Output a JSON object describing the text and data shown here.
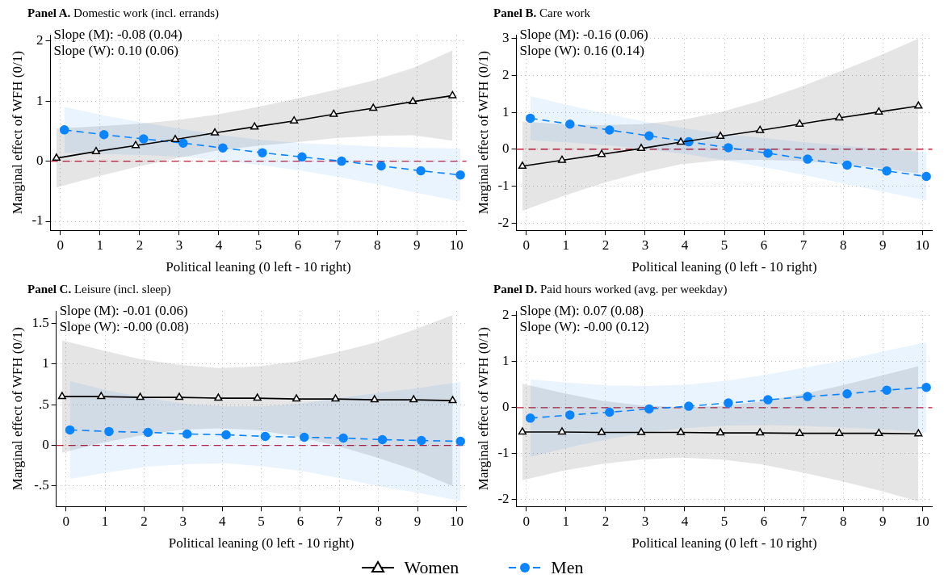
{
  "chart_data": [
    {
      "type": "line",
      "title": "Panel A. Domestic work (incl. errands)",
      "xlabel": "Political leaning (0 left - 10 right)",
      "ylabel": "Marginal effect of WFH (0/1)",
      "annotations": [
        "Slope (M): -0.08 (0.04)",
        "Slope (W): 0.10 (0.06)"
      ],
      "xlim": [
        -0.25,
        10.25
      ],
      "xticks": [
        0,
        1,
        2,
        3,
        4,
        5,
        6,
        7,
        8,
        9,
        10
      ],
      "ylim": [
        -1.15,
        2.1
      ],
      "yticks": [
        -1,
        0,
        1,
        2
      ],
      "grid": true,
      "legend": "bottom",
      "ref_lines": [
        {
          "axis": "y",
          "value": 0,
          "color": "#c41e3a",
          "line_style": "dashed"
        }
      ],
      "series": [
        {
          "name": "Women",
          "color": "#000000",
          "marker": "triangle",
          "line_style": "solid",
          "x": [
            -0.1,
            0.9,
            1.9,
            2.9,
            3.9,
            4.9,
            5.9,
            6.9,
            7.9,
            8.9,
            9.9
          ],
          "values": [
            0.05,
            0.16,
            0.26,
            0.36,
            0.47,
            0.57,
            0.67,
            0.78,
            0.88,
            0.99,
            1.09
          ],
          "upper": [
            0.54,
            0.58,
            0.62,
            0.68,
            0.77,
            0.89,
            1.03,
            1.18,
            1.34,
            1.55,
            1.84
          ],
          "lower": [
            -0.44,
            -0.26,
            -0.1,
            0.04,
            0.17,
            0.25,
            0.31,
            0.38,
            0.42,
            0.43,
            0.34
          ]
        },
        {
          "name": "Men",
          "color": "#0a84ff",
          "marker": "circle",
          "line_style": "dashed",
          "x": [
            0.1,
            1.1,
            2.1,
            3.1,
            4.1,
            5.1,
            6.1,
            7.1,
            8.1,
            9.1,
            10.1
          ],
          "values": [
            0.52,
            0.44,
            0.37,
            0.3,
            0.22,
            0.14,
            0.07,
            0.0,
            -0.08,
            -0.16,
            -0.23
          ],
          "upper": [
            0.9,
            0.76,
            0.64,
            0.53,
            0.43,
            0.35,
            0.3,
            0.27,
            0.24,
            0.22,
            0.21
          ],
          "lower": [
            0.14,
            0.12,
            0.1,
            0.07,
            0.01,
            -0.07,
            -0.16,
            -0.27,
            -0.4,
            -0.54,
            -0.67
          ]
        }
      ]
    },
    {
      "type": "line",
      "title": "Panel B. Care work",
      "xlabel": "Political leaning (0 left - 10 right)",
      "ylabel": "Marginal effect of WFH (0/1)",
      "annotations": [
        "Slope (M): -0.16 (0.06)",
        "Slope (W): 0.16 (0.14)"
      ],
      "xlim": [
        -0.25,
        10.25
      ],
      "xticks": [
        0,
        1,
        2,
        3,
        4,
        5,
        6,
        7,
        8,
        9,
        10
      ],
      "ylim": [
        -2.2,
        3.1
      ],
      "yticks": [
        -2,
        -1,
        0,
        1,
        2,
        3
      ],
      "grid": true,
      "ref_lines": [
        {
          "axis": "y",
          "value": 0,
          "color": "#c41e3a",
          "line_style": "dashed"
        }
      ],
      "series": [
        {
          "name": "Women",
          "color": "#000000",
          "marker": "triangle",
          "line_style": "solid",
          "x": [
            -0.1,
            0.9,
            1.9,
            2.9,
            3.9,
            4.9,
            5.9,
            6.9,
            7.9,
            8.9,
            9.9
          ],
          "values": [
            -0.46,
            -0.3,
            -0.14,
            0.02,
            0.19,
            0.35,
            0.51,
            0.68,
            0.85,
            1.01,
            1.17
          ],
          "upper": [
            0.75,
            0.68,
            0.65,
            0.68,
            0.79,
            1.0,
            1.31,
            1.68,
            2.1,
            2.53,
            3.0
          ],
          "lower": [
            -1.67,
            -1.28,
            -0.93,
            -0.64,
            -0.41,
            -0.3,
            -0.29,
            -0.32,
            -0.4,
            -0.51,
            -0.66
          ]
        },
        {
          "name": "Men",
          "color": "#0a84ff",
          "marker": "circle",
          "line_style": "dashed",
          "x": [
            0.1,
            1.1,
            2.1,
            3.1,
            4.1,
            5.1,
            6.1,
            7.1,
            8.1,
            9.1,
            10.1
          ],
          "values": [
            0.84,
            0.68,
            0.52,
            0.36,
            0.2,
            0.04,
            -0.11,
            -0.27,
            -0.43,
            -0.59,
            -0.74
          ],
          "upper": [
            1.44,
            1.18,
            0.94,
            0.73,
            0.55,
            0.4,
            0.29,
            0.18,
            0.09,
            -0.01,
            -0.09
          ],
          "lower": [
            0.24,
            0.18,
            0.1,
            -0.01,
            -0.15,
            -0.32,
            -0.51,
            -0.72,
            -0.95,
            -1.17,
            -1.39
          ]
        }
      ]
    },
    {
      "type": "line",
      "title": "Panel C. Leisure (incl. sleep)",
      "xlabel": "Political leaning (0 left - 10 right)",
      "ylabel": "Marginal effect of WFH (0/1)",
      "annotations": [
        "Slope (M): -0.01 (0.06)",
        "Slope (W): -0.00 (0.08)"
      ],
      "xlim": [
        -0.25,
        10.25
      ],
      "xticks": [
        0,
        1,
        2,
        3,
        4,
        5,
        6,
        7,
        8,
        9,
        10
      ],
      "ylim": [
        -0.75,
        1.65
      ],
      "yticks": [
        {
          "value": -0.5,
          "label": "-.5"
        },
        0,
        {
          "value": 0.5,
          "label": ".5"
        },
        1,
        1.5
      ],
      "grid": true,
      "ref_lines": [
        {
          "axis": "y",
          "value": 0,
          "color": "#c41e3a",
          "line_style": "dashed"
        }
      ],
      "series": [
        {
          "name": "Women",
          "color": "#000000",
          "marker": "triangle",
          "line_style": "solid",
          "x": [
            -0.1,
            0.9,
            1.9,
            2.9,
            3.9,
            4.9,
            5.9,
            6.9,
            7.9,
            8.9,
            9.9
          ],
          "values": [
            0.6,
            0.6,
            0.59,
            0.59,
            0.58,
            0.58,
            0.57,
            0.57,
            0.56,
            0.56,
            0.55
          ],
          "upper": [
            1.29,
            1.17,
            1.06,
            0.99,
            0.95,
            0.97,
            1.03,
            1.14,
            1.26,
            1.42,
            1.6
          ],
          "lower": [
            -0.09,
            0.03,
            0.12,
            0.19,
            0.21,
            0.19,
            0.11,
            0.0,
            -0.14,
            -0.3,
            -0.5
          ]
        },
        {
          "name": "Men",
          "color": "#0a84ff",
          "marker": "circle",
          "line_style": "dashed",
          "x": [
            0.1,
            1.1,
            2.1,
            3.1,
            4.1,
            5.1,
            6.1,
            7.1,
            8.1,
            9.1,
            10.1
          ],
          "values": [
            0.19,
            0.17,
            0.16,
            0.14,
            0.13,
            0.11,
            0.1,
            0.09,
            0.07,
            0.06,
            0.05
          ],
          "upper": [
            0.79,
            0.67,
            0.58,
            0.51,
            0.48,
            0.48,
            0.52,
            0.59,
            0.65,
            0.71,
            0.78
          ],
          "lower": [
            -0.41,
            -0.33,
            -0.26,
            -0.23,
            -0.22,
            -0.26,
            -0.32,
            -0.41,
            -0.51,
            -0.59,
            -0.68
          ]
        }
      ]
    },
    {
      "type": "line",
      "title": "Panel D. Paid hours worked (avg. per weekday)",
      "xlabel": "Political leaning (0 left - 10 right)",
      "ylabel": "Marginal effect of WFH (0/1)",
      "annotations": [
        "Slope (M): 0.07 (0.08)",
        "Slope (W): -0.00 (0.12)"
      ],
      "xlim": [
        -0.25,
        10.25
      ],
      "xticks": [
        0,
        1,
        2,
        3,
        4,
        5,
        6,
        7,
        8,
        9,
        10
      ],
      "ylim": [
        -2.15,
        2.1
      ],
      "yticks": [
        -2,
        -1,
        0,
        1,
        2
      ],
      "grid": true,
      "ref_lines": [
        {
          "axis": "y",
          "value": 0,
          "color": "#c41e3a",
          "line_style": "dashed"
        }
      ],
      "series": [
        {
          "name": "Women",
          "color": "#000000",
          "marker": "triangle",
          "line_style": "solid",
          "x": [
            -0.1,
            0.9,
            1.9,
            2.9,
            3.9,
            4.9,
            5.9,
            6.9,
            7.9,
            8.9,
            9.9
          ],
          "values": [
            -0.53,
            -0.53,
            -0.54,
            -0.54,
            -0.54,
            -0.55,
            -0.55,
            -0.56,
            -0.56,
            -0.56,
            -0.57
          ],
          "upper": [
            0.52,
            0.32,
            0.15,
            0.05,
            0.01,
            0.03,
            0.13,
            0.28,
            0.47,
            0.68,
            0.9
          ],
          "lower": [
            -1.58,
            -1.38,
            -1.23,
            -1.13,
            -1.09,
            -1.13,
            -1.23,
            -1.4,
            -1.59,
            -1.8,
            -2.04
          ]
        },
        {
          "name": "Men",
          "color": "#0a84ff",
          "marker": "circle",
          "line_style": "dashed",
          "x": [
            0.1,
            1.1,
            2.1,
            3.1,
            4.1,
            5.1,
            6.1,
            7.1,
            8.1,
            9.1,
            10.1
          ],
          "values": [
            -0.23,
            -0.16,
            -0.1,
            -0.03,
            0.03,
            0.1,
            0.17,
            0.24,
            0.3,
            0.38,
            0.44
          ],
          "upper": [
            0.61,
            0.54,
            0.48,
            0.47,
            0.5,
            0.59,
            0.72,
            0.88,
            1.04,
            1.24,
            1.42
          ],
          "lower": [
            -1.07,
            -0.86,
            -0.68,
            -0.53,
            -0.44,
            -0.39,
            -0.38,
            -0.4,
            -0.44,
            -0.48,
            -0.54
          ]
        }
      ]
    }
  ]
}
